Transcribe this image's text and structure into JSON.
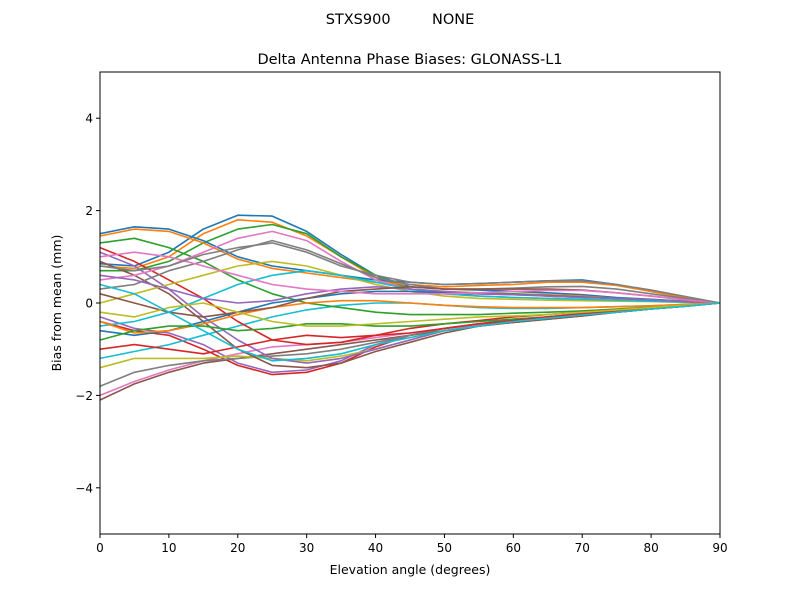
{
  "chart_data": {
    "type": "line",
    "suptitle": "STXS900         NONE",
    "title": "Delta Antenna Phase Biases: GLONASS-L1",
    "xlabel": "Elevation angle (degrees)",
    "ylabel": "Bias from mean (mm)",
    "xlim": [
      0,
      90
    ],
    "ylim": [
      -5,
      5
    ],
    "xticks": [
      0,
      10,
      20,
      30,
      40,
      50,
      60,
      70,
      80,
      90
    ],
    "yticks": [
      -4,
      -2,
      0,
      2,
      4
    ],
    "ytick_labels": [
      "−4",
      "−2",
      "0",
      "2",
      "4"
    ],
    "grid": false,
    "colors": [
      "#1f77b4",
      "#ff7f0e",
      "#2ca02c",
      "#d62728",
      "#9467bd",
      "#8c564b",
      "#e377c2",
      "#7f7f7f",
      "#bcbd22",
      "#17becf"
    ],
    "x": [
      0,
      5,
      10,
      15,
      20,
      25,
      30,
      35,
      40,
      45,
      50,
      55,
      60,
      65,
      70,
      75,
      80,
      85,
      90
    ],
    "series": [
      {
        "values": [
          0.85,
          0.8,
          1.1,
          1.6,
          1.9,
          1.88,
          1.55,
          1.05,
          0.6,
          0.35,
          0.3,
          0.28,
          0.25,
          0.22,
          0.18,
          0.12,
          0.08,
          0.04,
          0
        ]
      },
      {
        "values": [
          0.8,
          0.75,
          1.0,
          1.5,
          1.8,
          1.75,
          1.45,
          1.0,
          0.55,
          0.3,
          0.25,
          0.22,
          0.2,
          0.18,
          0.15,
          0.1,
          0.07,
          0.03,
          0
        ]
      },
      {
        "values": [
          0.7,
          0.7,
          0.9,
          1.3,
          1.6,
          1.7,
          1.5,
          1.0,
          0.6,
          0.3,
          0.2,
          0.2,
          0.2,
          0.15,
          0.12,
          0.1,
          0.06,
          0.03,
          0
        ]
      },
      {
        "values": [
          -0.4,
          -0.6,
          -0.7,
          -1.0,
          -1.35,
          -1.55,
          -1.5,
          -1.3,
          -0.95,
          -0.7,
          -0.55,
          -0.45,
          -0.38,
          -0.3,
          -0.25,
          -0.18,
          -0.12,
          -0.06,
          0
        ]
      },
      {
        "values": [
          -0.3,
          -0.55,
          -0.65,
          -0.9,
          -1.3,
          -1.5,
          -1.45,
          -1.25,
          -0.9,
          -0.7,
          -0.55,
          -0.45,
          -0.35,
          -0.3,
          -0.22,
          -0.16,
          -0.1,
          -0.05,
          0
        ]
      },
      {
        "values": [
          -2.1,
          -1.75,
          -1.5,
          -1.3,
          -1.2,
          -1.1,
          -1.0,
          -0.9,
          -0.8,
          -0.7,
          -0.6,
          -0.5,
          -0.42,
          -0.35,
          -0.28,
          -0.2,
          -0.13,
          -0.07,
          0
        ]
      },
      {
        "values": [
          -2.0,
          -1.7,
          -1.45,
          -1.25,
          -1.1,
          -0.95,
          -0.9,
          -0.85,
          -0.75,
          -0.65,
          -0.55,
          -0.48,
          -0.4,
          -0.33,
          -0.26,
          -0.2,
          -0.13,
          -0.07,
          0
        ]
      },
      {
        "values": [
          -1.8,
          -1.5,
          -1.35,
          -1.25,
          -1.2,
          -1.15,
          -1.1,
          -1.0,
          -0.85,
          -0.7,
          -0.55,
          -0.45,
          -0.4,
          -0.32,
          -0.25,
          -0.18,
          -0.12,
          -0.06,
          0
        ]
      },
      {
        "values": [
          -1.4,
          -1.2,
          -1.2,
          -1.2,
          -1.15,
          -1.2,
          -1.25,
          -1.15,
          -1.0,
          -0.8,
          -0.6,
          -0.5,
          -0.4,
          -0.33,
          -0.26,
          -0.2,
          -0.13,
          -0.07,
          0
        ]
      },
      {
        "values": [
          -1.2,
          -1.05,
          -0.9,
          -0.7,
          -0.5,
          -0.3,
          -0.15,
          -0.05,
          0.0,
          0.0,
          -0.05,
          -0.1,
          -0.12,
          -0.12,
          -0.1,
          -0.08,
          -0.06,
          -0.03,
          0
        ]
      },
      {
        "values": [
          1.5,
          1.65,
          1.6,
          1.35,
          1.0,
          0.8,
          0.7,
          0.6,
          0.5,
          0.45,
          0.4,
          0.42,
          0.45,
          0.48,
          0.5,
          0.4,
          0.25,
          0.12,
          0
        ]
      },
      {
        "values": [
          1.45,
          1.6,
          1.55,
          1.3,
          0.95,
          0.75,
          0.65,
          0.55,
          0.45,
          0.4,
          0.35,
          0.38,
          0.4,
          0.45,
          0.45,
          0.38,
          0.25,
          0.12,
          0
        ]
      },
      {
        "values": [
          1.3,
          1.4,
          1.2,
          0.9,
          0.5,
          0.2,
          0.0,
          -0.1,
          -0.2,
          -0.25,
          -0.25,
          -0.25,
          -0.22,
          -0.2,
          -0.17,
          -0.13,
          -0.09,
          -0.05,
          0
        ]
      },
      {
        "values": [
          1.2,
          0.9,
          0.5,
          0.1,
          -0.4,
          -0.8,
          -0.9,
          -0.85,
          -0.7,
          -0.55,
          -0.45,
          -0.38,
          -0.3,
          -0.25,
          -0.2,
          -0.15,
          -0.1,
          -0.05,
          0
        ]
      },
      {
        "values": [
          1.1,
          0.8,
          0.3,
          -0.3,
          -0.8,
          -1.2,
          -1.3,
          -1.2,
          -1.0,
          -0.8,
          -0.6,
          -0.5,
          -0.4,
          -0.33,
          -0.27,
          -0.2,
          -0.13,
          -0.07,
          0
        ]
      },
      {
        "values": [
          0.9,
          0.6,
          0.2,
          -0.4,
          -1.0,
          -1.35,
          -1.4,
          -1.3,
          -1.05,
          -0.85,
          -0.65,
          -0.5,
          -0.42,
          -0.35,
          -0.28,
          -0.2,
          -0.13,
          -0.07,
          0
        ]
      },
      {
        "values": [
          0.5,
          0.6,
          0.8,
          1.1,
          1.4,
          1.55,
          1.35,
          0.9,
          0.5,
          0.3,
          0.2,
          0.15,
          0.12,
          0.1,
          0.08,
          0.06,
          0.04,
          0.02,
          0
        ]
      },
      {
        "values": [
          0.3,
          0.4,
          0.7,
          0.9,
          1.15,
          1.35,
          1.15,
          0.85,
          0.55,
          0.4,
          0.3,
          0.3,
          0.32,
          0.35,
          0.36,
          0.3,
          0.2,
          0.1,
          0
        ]
      },
      {
        "values": [
          0.0,
          0.2,
          0.4,
          0.6,
          0.8,
          0.9,
          0.8,
          0.6,
          0.4,
          0.25,
          0.15,
          0.1,
          0.08,
          0.06,
          0.05,
          0.04,
          0.03,
          0.01,
          0
        ]
      },
      {
        "values": [
          -0.5,
          -0.4,
          -0.2,
          0.1,
          0.4,
          0.6,
          0.7,
          0.6,
          0.45,
          0.3,
          0.2,
          0.15,
          0.12,
          0.1,
          0.08,
          0.06,
          0.04,
          0.02,
          0
        ]
      },
      {
        "values": [
          -0.6,
          -0.7,
          -0.6,
          -0.4,
          -0.2,
          0.0,
          0.1,
          0.2,
          0.25,
          0.25,
          0.22,
          0.2,
          0.18,
          0.16,
          0.13,
          0.1,
          0.07,
          0.03,
          0
        ]
      },
      {
        "values": [
          -0.4,
          -0.65,
          -0.6,
          -0.45,
          -0.25,
          -0.1,
          0.0,
          0.05,
          0.05,
          0.0,
          -0.05,
          -0.08,
          -0.1,
          -0.1,
          -0.1,
          -0.08,
          -0.06,
          -0.03,
          0
        ]
      },
      {
        "values": [
          -0.8,
          -0.6,
          -0.5,
          -0.5,
          -0.6,
          -0.55,
          -0.45,
          -0.45,
          -0.5,
          -0.5,
          -0.45,
          -0.4,
          -0.35,
          -0.3,
          -0.25,
          -0.2,
          -0.13,
          -0.07,
          0
        ]
      },
      {
        "values": [
          -1.0,
          -0.9,
          -1.0,
          -1.1,
          -0.95,
          -0.8,
          -0.7,
          -0.75,
          -0.7,
          -0.65,
          -0.55,
          -0.45,
          -0.38,
          -0.3,
          -0.24,
          -0.18,
          -0.12,
          -0.06,
          0
        ]
      },
      {
        "values": [
          0.6,
          0.5,
          0.3,
          0.1,
          0.0,
          0.05,
          0.2,
          0.3,
          0.35,
          0.3,
          0.25,
          0.2,
          0.18,
          0.15,
          0.12,
          0.1,
          0.07,
          0.03,
          0
        ]
      },
      {
        "values": [
          0.2,
          0.0,
          -0.2,
          -0.3,
          -0.2,
          -0.1,
          0.1,
          0.25,
          0.3,
          0.35,
          0.3,
          0.3,
          0.3,
          0.3,
          0.28,
          0.22,
          0.15,
          0.07,
          0
        ]
      },
      {
        "values": [
          1.0,
          1.1,
          1.0,
          0.8,
          0.6,
          0.4,
          0.3,
          0.25,
          0.2,
          0.2,
          0.2,
          0.22,
          0.25,
          0.27,
          0.27,
          0.22,
          0.15,
          0.07,
          0
        ]
      },
      {
        "values": [
          0.8,
          0.7,
          0.8,
          1.05,
          1.2,
          1.3,
          1.1,
          0.8,
          0.6,
          0.45,
          0.4,
          0.42,
          0.45,
          0.48,
          0.48,
          0.4,
          0.28,
          0.14,
          0
        ]
      },
      {
        "values": [
          -0.2,
          -0.3,
          -0.1,
          0.0,
          -0.2,
          -0.4,
          -0.5,
          -0.5,
          -0.45,
          -0.4,
          -0.35,
          -0.3,
          -0.28,
          -0.25,
          -0.2,
          -0.15,
          -0.1,
          -0.05,
          0
        ]
      },
      {
        "values": [
          0.4,
          0.2,
          -0.2,
          -0.6,
          -1.0,
          -1.25,
          -1.2,
          -1.1,
          -0.9,
          -0.75,
          -0.6,
          -0.5,
          -0.4,
          -0.33,
          -0.26,
          -0.2,
          -0.13,
          -0.07,
          0
        ]
      }
    ]
  }
}
